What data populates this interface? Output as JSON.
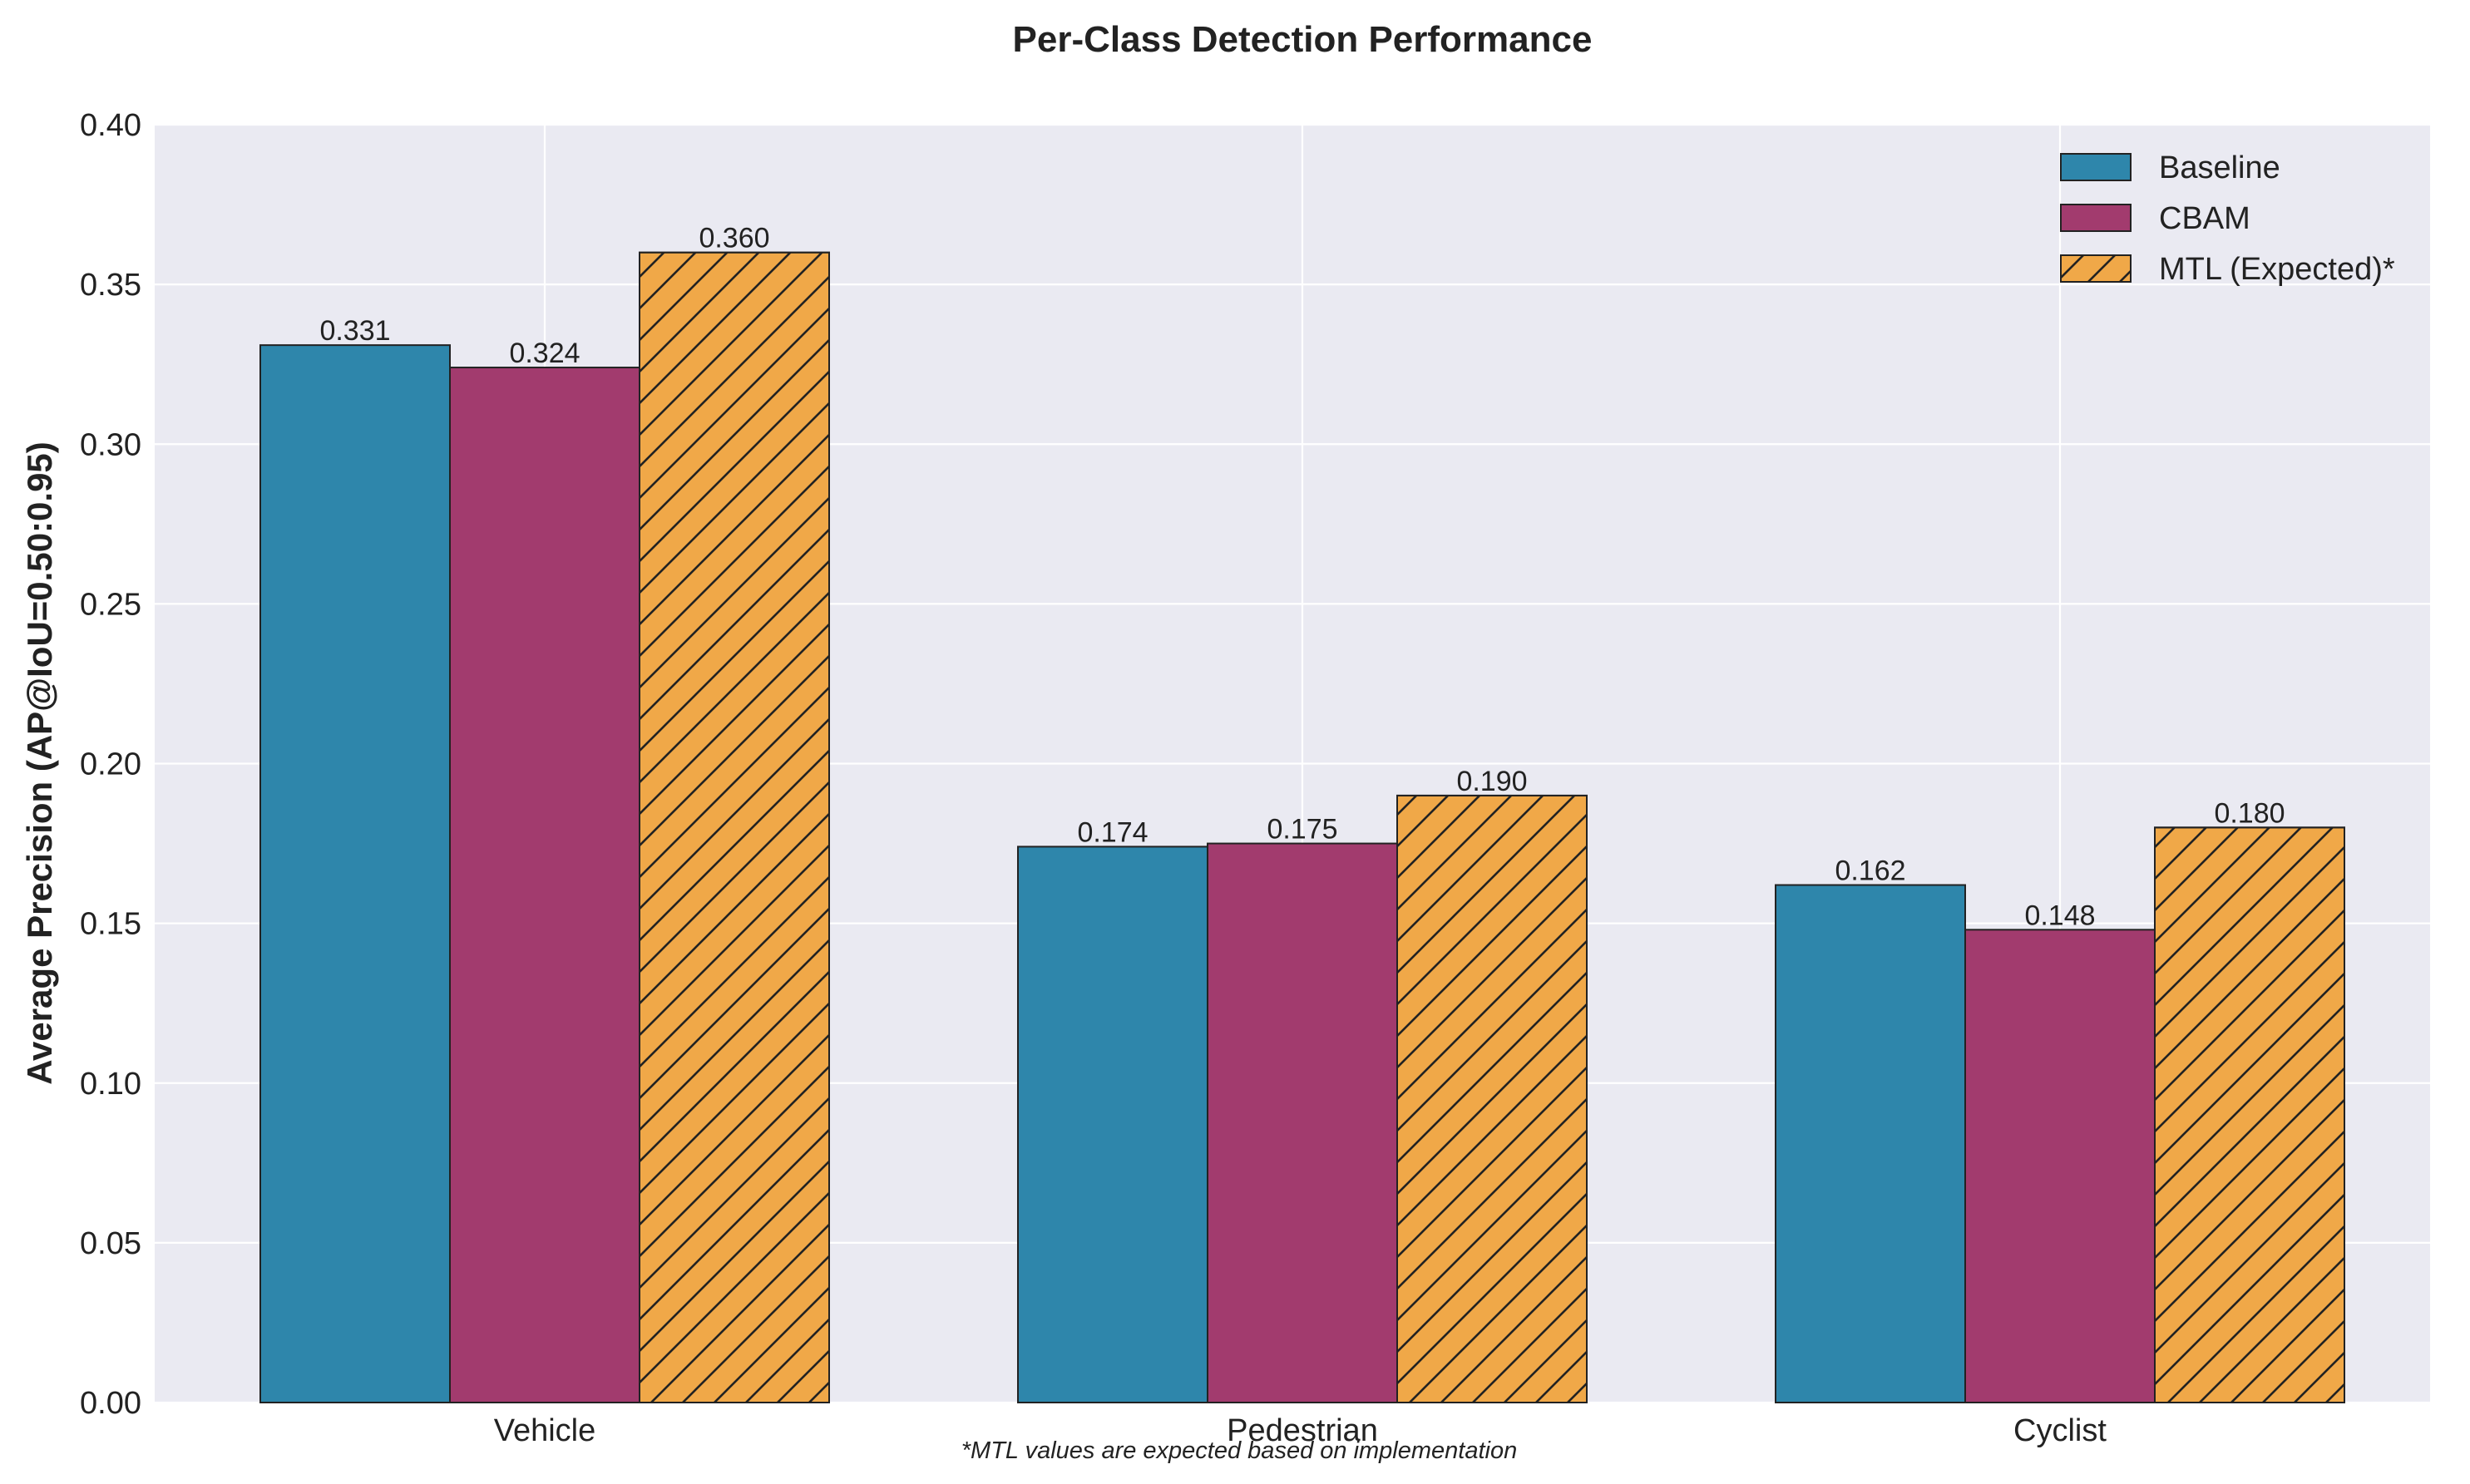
{
  "chart_data": {
    "type": "bar",
    "title": "Per-Class Detection Performance",
    "xlabel": "",
    "ylabel": "Average Precision (AP@IoU=0.50:0.95)",
    "ylim": [
      0,
      0.4
    ],
    "yticks": [
      "0.00",
      "0.05",
      "0.10",
      "0.15",
      "0.20",
      "0.25",
      "0.30",
      "0.35",
      "0.40"
    ],
    "categories": [
      "Vehicle",
      "Pedestrian",
      "Cyclist"
    ],
    "series": [
      {
        "name": "Baseline",
        "values": [
          0.331,
          0.174,
          0.162
        ],
        "labels": [
          "0.331",
          "0.174",
          "0.162"
        ],
        "color": "#2E86AB",
        "hatch": false
      },
      {
        "name": "CBAM",
        "values": [
          0.324,
          0.175,
          0.148
        ],
        "labels": [
          "0.324",
          "0.175",
          "0.148"
        ],
        "color": "#A23B6E",
        "hatch": false
      },
      {
        "name": "MTL (Expected)*",
        "values": [
          0.36,
          0.19,
          0.18
        ],
        "labels": [
          "0.360",
          "0.190",
          "0.180"
        ],
        "color": "#F0A848",
        "hatch": true
      }
    ],
    "grid": true,
    "legend_position": "top-right",
    "footnote": "*MTL values are expected based on implementation"
  }
}
